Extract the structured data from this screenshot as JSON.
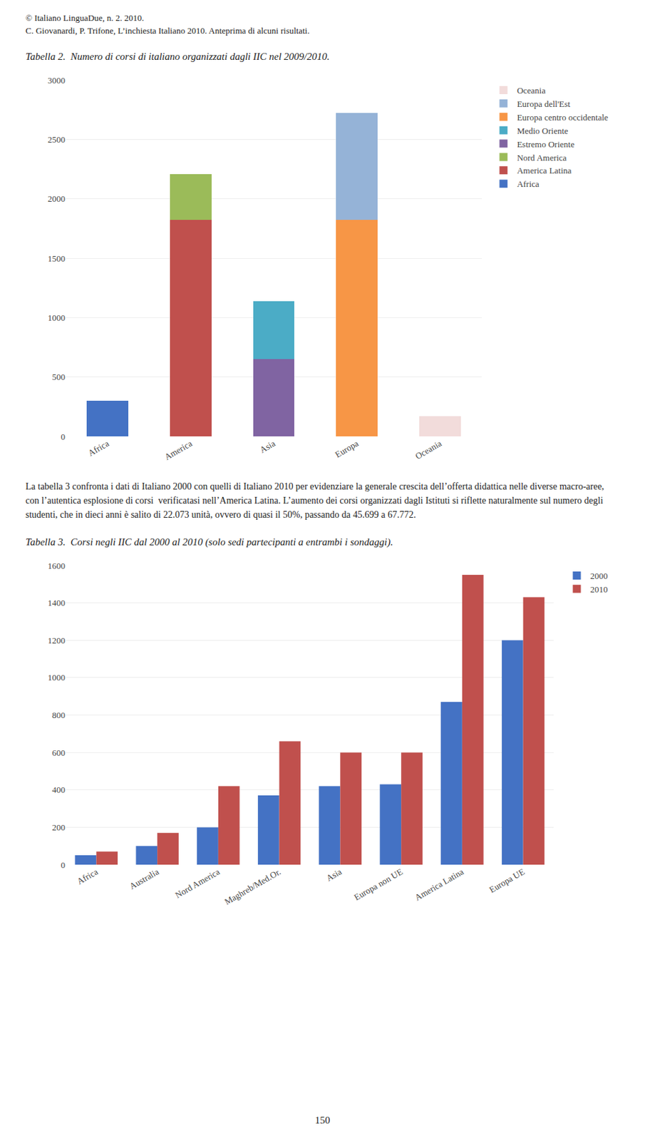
{
  "chart_data": [
    {
      "type": "bar",
      "title": "Tabella 2.  Numero di corsi di italiano organizzati dagli IIC nel 2009/2010.",
      "annotations": [
        "© Italiano LinguaDue, n. 2. 2010.",
        "C. Giovanardi, P. Trifone, L’inchiesta Italiano 2010. Anteprima di alcuni risultati."
      ],
      "categories": [
        "Africa",
        "America",
        "Asia",
        "Europa",
        "Oceania"
      ],
      "series": [
        {
          "name": "Africa",
          "color": "#4472C4",
          "values": [
            300,
            0,
            0,
            0,
            0
          ]
        },
        {
          "name": "America Latina",
          "color": "#C0504D",
          "values": [
            0,
            1820,
            0,
            0,
            0
          ]
        },
        {
          "name": "Nord America",
          "color": "#9BBB59",
          "values": [
            0,
            390,
            0,
            0,
            0
          ]
        },
        {
          "name": "Estremo Oriente",
          "color": "#8064A2",
          "values": [
            0,
            0,
            650,
            0,
            0
          ]
        },
        {
          "name": "Medio Oriente",
          "color": "#4BACC6",
          "values": [
            0,
            0,
            490,
            0,
            0
          ]
        },
        {
          "name": "Europa centro occidentale",
          "color": "#F79646",
          "values": [
            0,
            0,
            0,
            1820,
            0
          ]
        },
        {
          "name": "Europa dell'Est",
          "color": "#95B3D7",
          "values": [
            0,
            0,
            0,
            900,
            0
          ]
        },
        {
          "name": "Oceania",
          "color": "#F2DCDB",
          "values": [
            0,
            0,
            0,
            0,
            170
          ]
        }
      ],
      "stacked": true,
      "ylim": [
        0,
        3000
      ],
      "yticks": [
        0,
        500,
        1000,
        1500,
        2000,
        2500,
        3000
      ],
      "grid": true,
      "legend": "right"
    },
    {
      "type": "bar",
      "title": "Tabella 3.  Corsi negli IIC dal 2000 al 2010 (solo sedi partecipanti a entrambi i sondaggi).",
      "annotations": [
        "La tabella 3 confronta i dati di Italiano 2000 con quelli di Italiano 2010 per evidenziare la generale crescita dell’offerta didattica nelle diverse macro-aree, con l’autentica esplosione di corsi  verificatasi nell’America Latina. L’aumento dei corsi organizzati dagli Istituti si riflette naturalmente sul numero degli studenti, che in dieci anni è salito di 22.073 unità, ovvero di quasi il 50%, passando da 45.699 a 67.772.",
        "150"
      ],
      "categories": [
        "Africa",
        "Australia",
        "Nord America",
        "Maghreb/Med.Or.",
        "Asia",
        "Europa non UE",
        "America Latina",
        "Europa UE"
      ],
      "series": [
        {
          "name": "2000",
          "color": "#4472C4",
          "values": [
            50,
            100,
            200,
            370,
            420,
            430,
            870,
            1200
          ]
        },
        {
          "name": "2010",
          "color": "#C0504D",
          "values": [
            70,
            170,
            420,
            660,
            600,
            600,
            1550,
            1430
          ]
        }
      ],
      "ylim": [
        0,
        1600
      ],
      "yticks": [
        0,
        200,
        400,
        600,
        800,
        1000,
        1200,
        1400,
        1600
      ],
      "grid": true,
      "legend": "right"
    }
  ]
}
